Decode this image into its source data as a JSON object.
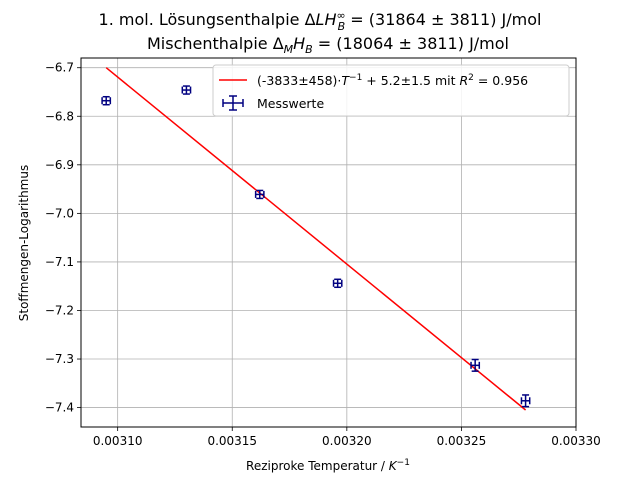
{
  "chart_data": {
    "type": "scatter",
    "title_line1": "1. mol. Lösungsenthalpie Δ_LH_B^∞ = (31864 ± 3811) J/mol",
    "title_line2": "Mischenthalpie Δ_MH_B = (18064 ± 3811) J/mol",
    "xlabel": "Reziproke Temperatur / K⁻¹",
    "ylabel": "Stoffmengen-Logarithmus",
    "xlim": [
      0.003084,
      0.0033
    ],
    "ylim": [
      -7.44,
      -6.68
    ],
    "xticks": [
      0.0031,
      0.00315,
      0.0032,
      0.00325,
      0.0033
    ],
    "xtick_labels": [
      "0.00310",
      "0.00315",
      "0.00320",
      "0.00325",
      "0.00330"
    ],
    "yticks": [
      -6.7,
      -6.8,
      -6.9,
      -7.0,
      -7.1,
      -7.2,
      -7.3,
      -7.4
    ],
    "ytick_labels": [
      "−6.7",
      "−6.8",
      "−6.9",
      "−7.0",
      "−7.1",
      "−7.2",
      "−7.3",
      "−7.4"
    ],
    "grid": true,
    "legend_position": "top-right",
    "series": [
      {
        "name": "Messwerte",
        "kind": "errorbar",
        "color": "#000080",
        "x": [
          0.003095,
          0.00313,
          0.003162,
          0.003196,
          0.003256,
          0.003278
        ],
        "y": [
          -6.768,
          -6.746,
          -6.961,
          -7.144,
          -7.313,
          -7.386
        ],
        "xerr": [
          1.8e-06,
          1.8e-06,
          1.8e-06,
          1.8e-06,
          1.8e-06,
          1.8e-06
        ],
        "yerr": [
          0.008,
          0.008,
          0.008,
          0.008,
          0.012,
          0.012
        ]
      },
      {
        "name": "(-3833±458) · T⁻¹ + 5.2±1.5 mit R² = 0.956",
        "kind": "line",
        "color": "#ff0000",
        "x": [
          0.003095,
          0.003278
        ],
        "y": [
          -6.7,
          -7.405
        ]
      }
    ]
  }
}
